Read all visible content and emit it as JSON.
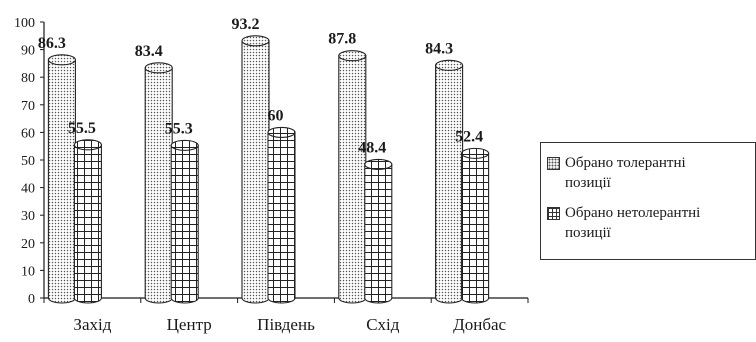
{
  "chart_data": {
    "type": "bar",
    "categories": [
      "Захід",
      "Центр",
      "Південь",
      "Схід",
      "Донбас"
    ],
    "series": [
      {
        "name": "Обрано толерантні\nпозиції",
        "values": [
          86.3,
          83.4,
          93.2,
          87.8,
          84.3
        ],
        "pattern": "dots"
      },
      {
        "name": "Обрано нетолерантні\nпозиції",
        "values": [
          55.5,
          55.3,
          60,
          48.4,
          52.4
        ],
        "pattern": "grid"
      }
    ],
    "ylim": [
      0,
      100
    ],
    "yticks": [
      0,
      10,
      20,
      30,
      40,
      50,
      60,
      70,
      80,
      90,
      100
    ],
    "grid": false,
    "legend_position": "right",
    "bar_style": "3d-cylinder",
    "data_labels": [
      "86.3",
      "55.5",
      "83.4",
      "55.3",
      "93.2",
      "60",
      "87.8",
      "48.4",
      "84.3",
      "52.4"
    ]
  }
}
